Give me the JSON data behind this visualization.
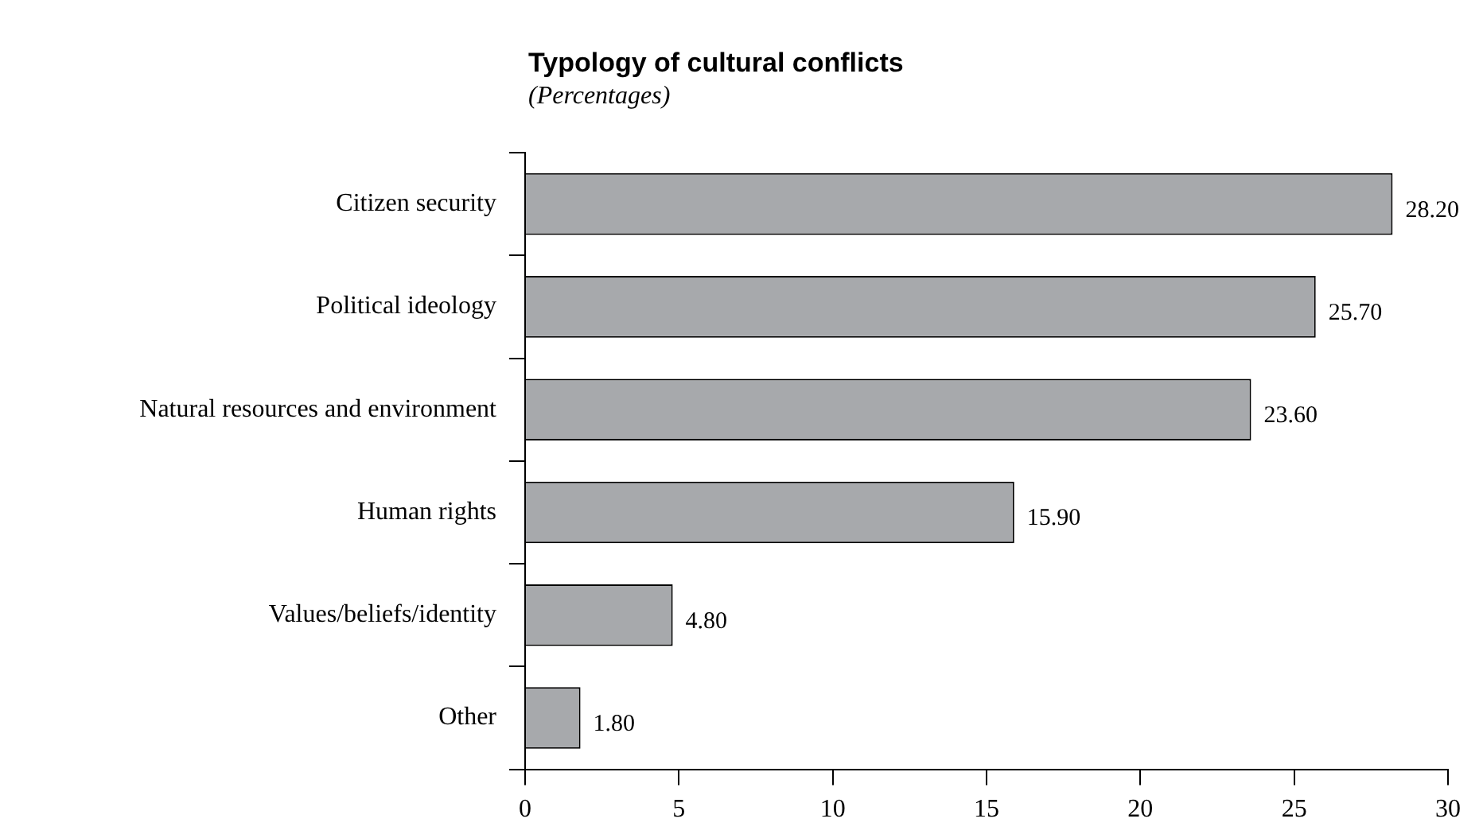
{
  "chart_data": {
    "type": "bar",
    "orientation": "horizontal",
    "title": "Typology of cultural conflicts",
    "subtitle": "(Percentages)",
    "categories": [
      "Citizen security",
      "Political ideology",
      "Natural resources and environment",
      "Human rights",
      "Values/beliefs/identity",
      "Other"
    ],
    "values": [
      28.2,
      25.7,
      23.6,
      15.9,
      4.8,
      1.8
    ],
    "value_labels": [
      "28.20",
      "25.70",
      "23.60",
      "15.90",
      "4.80",
      "1.80"
    ],
    "color": "#a7a9ac",
    "xlim": [
      0,
      30
    ],
    "xticks": [
      0,
      5,
      10,
      15,
      20,
      25,
      30
    ]
  }
}
